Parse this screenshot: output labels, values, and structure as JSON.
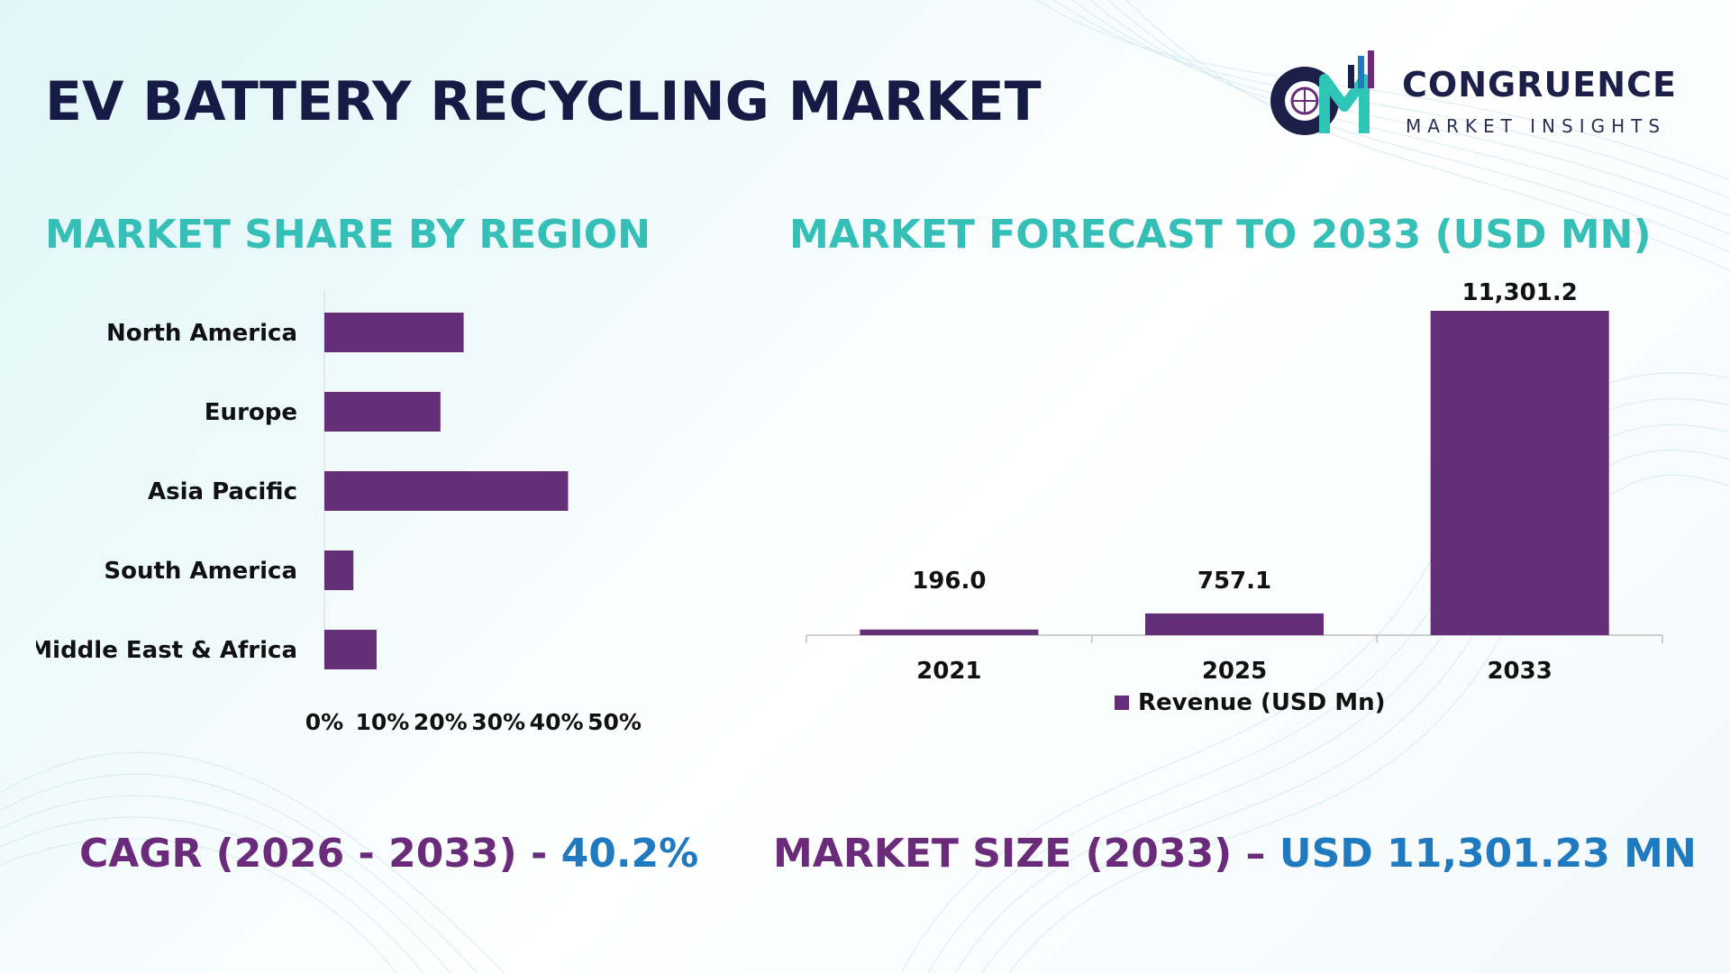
{
  "title": "EV BATTERY RECYCLING MARKET",
  "logo": {
    "name": "CONGRUENCE",
    "sub": "MARKET INSIGHTS"
  },
  "colors": {
    "bar": "#652e79",
    "title_dark": "#151b45",
    "section": "#35bfb6",
    "footer_label": "#6a2c7a",
    "footer_value": "#1f7ac0"
  },
  "left_section_title": "MARKET SHARE BY REGION",
  "right_section_title": "MARKET FORECAST TO 2033 (USD MN)",
  "chart_data": [
    {
      "type": "bar",
      "orientation": "horizontal",
      "categories": [
        "North America",
        "Europe",
        "Asia Pacific",
        "South America",
        "Middle East & Africa"
      ],
      "values": [
        24,
        20,
        42,
        5,
        9
      ],
      "value_unit": "%",
      "xlim": [
        0,
        50
      ],
      "xticks": [
        "0%",
        "10%",
        "20%",
        "30%",
        "40%",
        "50%"
      ],
      "grid": false
    },
    {
      "type": "bar",
      "categories": [
        "2021",
        "2025",
        "2033"
      ],
      "series": [
        {
          "name": "Revenue (USD Mn)",
          "values": [
            196.0,
            757.1,
            11301.2
          ]
        }
      ],
      "data_labels": [
        "196.0",
        "757.1",
        "11,301.2"
      ],
      "ylim": [
        0,
        11301.2
      ],
      "legend": "bottom",
      "grid": false
    }
  ],
  "footer": {
    "cagr_label": "CAGR (2026 - 2033) - ",
    "cagr_value": "40.2%",
    "size_label": "MARKET SIZE (2033) – ",
    "size_value": "USD 11,301.23 MN"
  }
}
